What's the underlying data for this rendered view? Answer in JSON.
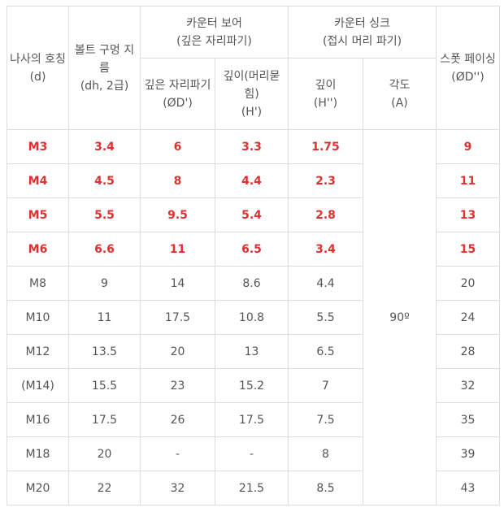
{
  "headers": {
    "thread": [
      "나사의 호칭",
      "(d)"
    ],
    "bolt_hole": [
      "볼트 구멍 지름",
      "(dh, 2급)"
    ],
    "counterbore_group": [
      "카운터 보어",
      "(깊은 자리파기)"
    ],
    "counterbore_dia": [
      "깊은 자리파기",
      "(ØD')"
    ],
    "counterbore_depth": [
      "깊이(머리묻힘)",
      "(H')"
    ],
    "countersink_group": [
      "카운터 싱크",
      "(접시 머리 파기)"
    ],
    "countersink_depth": [
      "깊이",
      "(H'')"
    ],
    "countersink_angle": [
      "각도",
      "(A)"
    ],
    "spot_facing": [
      "스폿 페이싱",
      "(ØD'')"
    ]
  },
  "angle_value": "90º",
  "rows": [
    {
      "d": "M3",
      "dh": "3.4",
      "cb_d": "6",
      "cb_h": "3.3",
      "cs_h": "1.75",
      "sf": "9",
      "highlight": true
    },
    {
      "d": "M4",
      "dh": "4.5",
      "cb_d": "8",
      "cb_h": "4.4",
      "cs_h": "2.3",
      "sf": "11",
      "highlight": true
    },
    {
      "d": "M5",
      "dh": "5.5",
      "cb_d": "9.5",
      "cb_h": "5.4",
      "cs_h": "2.8",
      "sf": "13",
      "highlight": true
    },
    {
      "d": "M6",
      "dh": "6.6",
      "cb_d": "11",
      "cb_h": "6.5",
      "cs_h": "3.4",
      "sf": "15",
      "highlight": true
    },
    {
      "d": "M8",
      "dh": "9",
      "cb_d": "14",
      "cb_h": "8.6",
      "cs_h": "4.4",
      "sf": "20",
      "highlight": false
    },
    {
      "d": "M10",
      "dh": "11",
      "cb_d": "17.5",
      "cb_h": "10.8",
      "cs_h": "5.5",
      "sf": "24",
      "highlight": false
    },
    {
      "d": "M12",
      "dh": "13.5",
      "cb_d": "20",
      "cb_h": "13",
      "cs_h": "6.5",
      "sf": "28",
      "highlight": false
    },
    {
      "d": "(M14)",
      "dh": "15.5",
      "cb_d": "23",
      "cb_h": "15.2",
      "cs_h": "7",
      "sf": "32",
      "highlight": false
    },
    {
      "d": "M16",
      "dh": "17.5",
      "cb_d": "26",
      "cb_h": "17.5",
      "cs_h": "7.5",
      "sf": "35",
      "highlight": false
    },
    {
      "d": "M18",
      "dh": "20",
      "cb_d": "-",
      "cb_h": "-",
      "cs_h": "8",
      "sf": "39",
      "highlight": false
    },
    {
      "d": "M20",
      "dh": "22",
      "cb_d": "32",
      "cb_h": "21.5",
      "cs_h": "8.5",
      "sf": "43",
      "highlight": false
    }
  ],
  "colors": {
    "highlight": "#e03030",
    "text": "#555555",
    "border": "#dddddd"
  }
}
